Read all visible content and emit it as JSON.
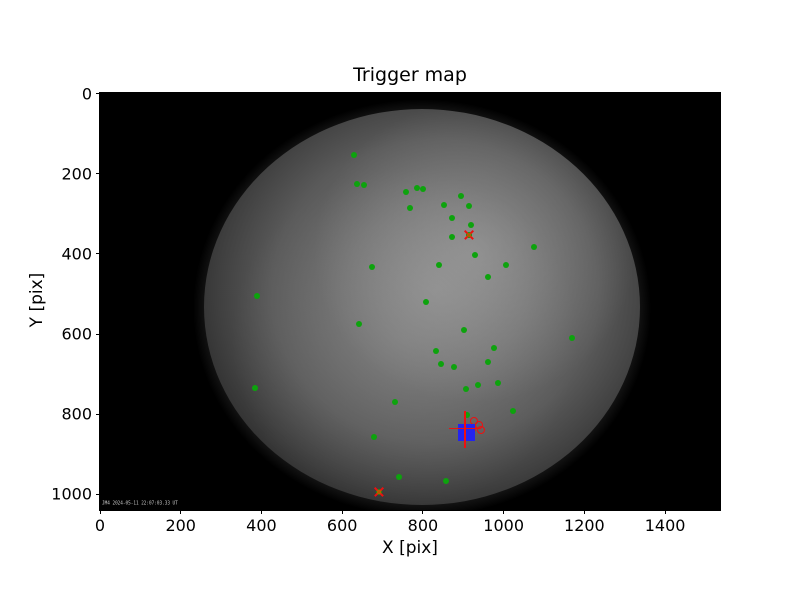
{
  "figure": {
    "title": "Trigger map",
    "xlabel": "X [pix]",
    "ylabel": "Y [pix]",
    "timestamp_overlay": "JM4 2024-05-11 22:07:03.33 UT"
  },
  "colors": {
    "trigger_green": "#0da30d",
    "marker_red": "#ee1010",
    "square_blue": "#2424ef",
    "x_center_orange": "#b35900",
    "background_black": "#000000",
    "figure_white": "#ffffff"
  },
  "chart_data": {
    "type": "scatter",
    "title": "Trigger map",
    "xlabel": "X [pix]",
    "ylabel": "Y [pix]",
    "xlim": [
      0,
      1536
    ],
    "ylim": [
      1040,
      0
    ],
    "x_ticks": [
      0,
      200,
      400,
      600,
      800,
      1000,
      1200,
      1400
    ],
    "y_ticks": [
      0,
      200,
      400,
      600,
      800,
      1000
    ],
    "grid": false,
    "legend": "none",
    "background_image": "grayscale all-sky fisheye camera frame, bright circular field on black",
    "series": [
      {
        "name": "trigger-pixels",
        "marker": "filled-circle",
        "color": "#0da30d",
        "points": [
          [
            630,
            154
          ],
          [
            637,
            226
          ],
          [
            655,
            229
          ],
          [
            758,
            246
          ],
          [
            786,
            238
          ],
          [
            800,
            239
          ],
          [
            767,
            286
          ],
          [
            894,
            258
          ],
          [
            851,
            279
          ],
          [
            913,
            281
          ],
          [
            873,
            311
          ],
          [
            919,
            329
          ],
          [
            872,
            360
          ],
          [
            1074,
            384
          ],
          [
            930,
            405
          ],
          [
            841,
            430
          ],
          [
            1006,
            430
          ],
          [
            961,
            460
          ],
          [
            674,
            435
          ],
          [
            390,
            506
          ],
          [
            642,
            577
          ],
          [
            385,
            735
          ],
          [
            730,
            770
          ],
          [
            678,
            857
          ],
          [
            741,
            957
          ],
          [
            807,
            522
          ],
          [
            903,
            591
          ],
          [
            1169,
            612
          ],
          [
            833,
            644
          ],
          [
            976,
            637
          ],
          [
            845,
            675
          ],
          [
            878,
            683
          ],
          [
            962,
            671
          ],
          [
            985,
            724
          ],
          [
            936,
            729
          ],
          [
            907,
            739
          ],
          [
            1022,
            794
          ],
          [
            908,
            804
          ],
          [
            857,
            968
          ]
        ]
      },
      {
        "name": "flagged-events-x",
        "marker": "x-over-dot",
        "color": "#ee1010",
        "center_color": "#b35900",
        "points": [
          [
            913,
            354
          ],
          [
            690,
            996
          ]
        ]
      },
      {
        "name": "cluster-detections",
        "marker": "open-circle",
        "color": "#ee1010",
        "points": [
          [
            927,
            819
          ],
          [
            939,
            829
          ],
          [
            946,
            842
          ],
          [
            922,
            839
          ]
        ]
      },
      {
        "name": "selected-event-square",
        "marker": "filled-square",
        "color": "#2424ef",
        "points": [
          [
            909,
            847
          ]
        ]
      },
      {
        "name": "crosshair",
        "marker": "plus",
        "color": "#ee1010",
        "points": [
          [
            905,
            837
          ]
        ]
      }
    ]
  }
}
